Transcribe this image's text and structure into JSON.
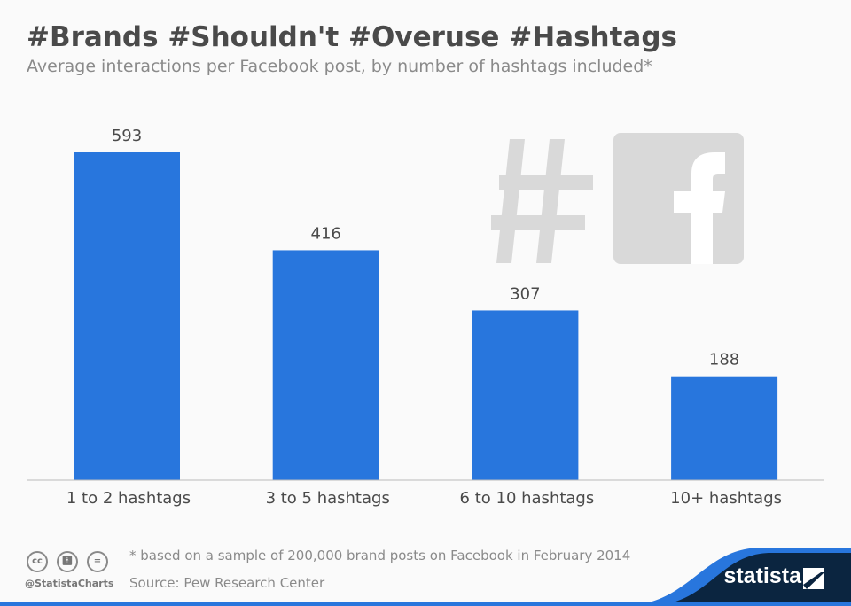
{
  "chart_data": {
    "type": "bar",
    "title": "#Brands #Shouldn't #Overuse #Hashtags",
    "subtitle": "Average interactions per Facebook post, by number of hashtags included*",
    "categories": [
      "1 to 2 hashtags",
      "3 to 5 hashtags",
      "6 to 10 hashtags",
      "10+ hashtags"
    ],
    "values": [
      593,
      416,
      307,
      188
    ],
    "value_labels": [
      "593",
      "416",
      "307",
      "188"
    ],
    "ylim": [
      0,
      593
    ],
    "grid": false,
    "bar_color": "#2876dd"
  },
  "footer": {
    "note": "* based on a sample of 200,000 brand posts on Facebook in February 2014",
    "source": "Source: Pew Research Center",
    "handle": "@StatistaCharts",
    "brand": "statista",
    "license_icons": [
      "cc",
      "by",
      "nd"
    ]
  },
  "decoration": {
    "icons": [
      "hashtag-icon",
      "facebook-icon"
    ]
  }
}
